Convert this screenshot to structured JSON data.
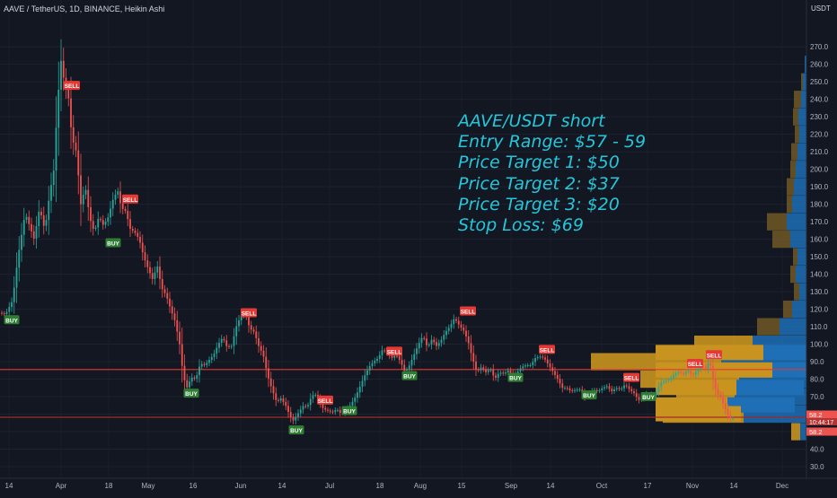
{
  "chart_data": {
    "type": "candlestick",
    "title": "AAVE / TetherUS, 1D, BINANCE, Heikin Ashi",
    "price_unit": "USDT",
    "y_ticks": [
      30,
      40,
      50,
      60,
      70,
      80,
      90,
      100,
      110,
      120,
      130,
      140,
      150,
      160,
      170,
      180,
      190,
      200,
      210,
      220,
      230,
      240,
      250,
      260,
      270
    ],
    "ylim": [
      25,
      277
    ],
    "x_labels": [
      "14",
      "Apr",
      "18",
      "May",
      "16",
      "Jun",
      "14",
      "Jul",
      "18",
      "Aug",
      "15",
      "Sep",
      "14",
      "Oct",
      "17",
      "Nov",
      "14",
      "Dec"
    ],
    "price_path": [
      [
        0,
        118
      ],
      [
        6,
        117
      ],
      [
        14,
        125
      ],
      [
        20,
        150
      ],
      [
        28,
        175
      ],
      [
        38,
        160
      ],
      [
        44,
        178
      ],
      [
        50,
        165
      ],
      [
        55,
        185
      ],
      [
        60,
        200
      ],
      [
        64,
        238
      ],
      [
        68,
        262
      ],
      [
        72,
        248
      ],
      [
        76,
        242
      ],
      [
        80,
        218
      ],
      [
        85,
        210
      ],
      [
        90,
        180
      ],
      [
        95,
        190
      ],
      [
        100,
        172
      ],
      [
        105,
        164
      ],
      [
        110,
        173
      ],
      [
        115,
        168
      ],
      [
        120,
        172
      ],
      [
        126,
        183
      ],
      [
        131,
        188
      ],
      [
        135,
        178
      ],
      [
        140,
        176
      ],
      [
        145,
        166
      ],
      [
        150,
        164
      ],
      [
        155,
        160
      ],
      [
        160,
        150
      ],
      [
        165,
        143
      ],
      [
        170,
        137
      ],
      [
        175,
        145
      ],
      [
        180,
        132
      ],
      [
        185,
        128
      ],
      [
        190,
        120
      ],
      [
        195,
        113
      ],
      [
        200,
        100
      ],
      [
        204,
        82
      ],
      [
        208,
        75
      ],
      [
        213,
        81
      ],
      [
        218,
        80
      ],
      [
        223,
        89
      ],
      [
        228,
        88
      ],
      [
        233,
        91
      ],
      [
        238,
        94
      ],
      [
        243,
        100
      ],
      [
        248,
        104
      ],
      [
        253,
        98
      ],
      [
        258,
        99
      ],
      [
        263,
        110
      ],
      [
        268,
        116
      ],
      [
        273,
        118
      ],
      [
        278,
        109
      ],
      [
        283,
        107
      ],
      [
        288,
        99
      ],
      [
        293,
        94
      ],
      [
        298,
        82
      ],
      [
        303,
        74
      ],
      [
        308,
        67
      ],
      [
        313,
        69
      ],
      [
        318,
        65
      ],
      [
        322,
        60
      ],
      [
        326,
        56
      ],
      [
        330,
        59
      ],
      [
        334,
        62
      ],
      [
        338,
        65
      ],
      [
        342,
        64
      ],
      [
        346,
        69
      ],
      [
        350,
        72
      ],
      [
        355,
        68
      ],
      [
        360,
        63
      ],
      [
        365,
        62
      ],
      [
        370,
        61
      ],
      [
        375,
        63
      ],
      [
        380,
        60
      ],
      [
        385,
        62
      ],
      [
        390,
        65
      ],
      [
        396,
        70
      ],
      [
        401,
        76
      ],
      [
        406,
        82
      ],
      [
        411,
        87
      ],
      [
        416,
        90
      ],
      [
        421,
        92
      ],
      [
        426,
        97
      ],
      [
        431,
        95
      ],
      [
        436,
        92
      ],
      [
        441,
        94
      ],
      [
        446,
        90
      ],
      [
        451,
        84
      ],
      [
        456,
        88
      ],
      [
        461,
        94
      ],
      [
        466,
        100
      ],
      [
        471,
        105
      ],
      [
        476,
        98
      ],
      [
        481,
        103
      ],
      [
        486,
        99
      ],
      [
        491,
        102
      ],
      [
        496,
        107
      ],
      [
        501,
        110
      ],
      [
        506,
        115
      ],
      [
        511,
        111
      ],
      [
        516,
        108
      ],
      [
        521,
        102
      ],
      [
        526,
        92
      ],
      [
        531,
        84
      ],
      [
        536,
        87
      ],
      [
        541,
        84
      ],
      [
        546,
        86
      ],
      [
        551,
        80
      ],
      [
        556,
        84
      ],
      [
        561,
        83
      ],
      [
        566,
        85
      ],
      [
        571,
        82
      ],
      [
        576,
        84
      ],
      [
        581,
        87
      ],
      [
        586,
        88
      ],
      [
        591,
        88
      ],
      [
        596,
        92
      ],
      [
        601,
        93
      ],
      [
        606,
        92
      ],
      [
        611,
        88
      ],
      [
        616,
        84
      ],
      [
        621,
        80
      ],
      [
        626,
        75
      ],
      [
        631,
        75
      ],
      [
        636,
        73
      ],
      [
        641,
        74
      ],
      [
        646,
        74
      ],
      [
        651,
        70
      ],
      [
        656,
        71
      ],
      [
        661,
        74
      ],
      [
        666,
        73
      ],
      [
        671,
        75
      ],
      [
        676,
        76
      ],
      [
        681,
        73
      ],
      [
        686,
        75
      ],
      [
        691,
        74
      ],
      [
        696,
        77
      ],
      [
        701,
        74
      ],
      [
        706,
        72
      ],
      [
        711,
        68
      ],
      [
        716,
        69
      ],
      [
        721,
        72
      ],
      [
        726,
        70
      ],
      [
        731,
        73
      ],
      [
        736,
        78
      ],
      [
        741,
        79
      ],
      [
        746,
        80
      ],
      [
        751,
        83
      ],
      [
        756,
        84
      ],
      [
        761,
        83
      ],
      [
        766,
        85
      ],
      [
        771,
        82
      ],
      [
        776,
        85
      ],
      [
        781,
        88
      ],
      [
        786,
        86
      ],
      [
        790,
        91
      ],
      [
        794,
        80
      ],
      [
        798,
        72
      ],
      [
        802,
        70
      ],
      [
        806,
        65
      ],
      [
        810,
        60
      ],
      [
        814,
        57
      ],
      [
        818,
        58.2
      ]
    ],
    "signals": [
      {
        "label": "BUY",
        "date_x": 13,
        "price": 114
      },
      {
        "label": "SELL",
        "date_x": 80,
        "price": 248
      },
      {
        "label": "SELL",
        "date_x": 145,
        "price": 183
      },
      {
        "label": "BUY",
        "date_x": 126,
        "price": 158
      },
      {
        "label": "BUY",
        "date_x": 213,
        "price": 72
      },
      {
        "label": "SELL",
        "date_x": 277,
        "price": 118
      },
      {
        "label": "BUY",
        "date_x": 330,
        "price": 51
      },
      {
        "label": "SELL",
        "date_x": 362,
        "price": 68
      },
      {
        "label": "BUY",
        "date_x": 389,
        "price": 62
      },
      {
        "label": "SELL",
        "date_x": 439,
        "price": 96
      },
      {
        "label": "BUY",
        "date_x": 456,
        "price": 82
      },
      {
        "label": "SELL",
        "date_x": 521,
        "price": 119
      },
      {
        "label": "BUY",
        "date_x": 574,
        "price": 81
      },
      {
        "label": "SELL",
        "date_x": 609,
        "price": 97
      },
      {
        "label": "BUY",
        "date_x": 656,
        "price": 71
      },
      {
        "label": "SELL",
        "date_x": 703,
        "price": 81
      },
      {
        "label": "BUY",
        "date_x": 722,
        "price": 70
      },
      {
        "label": "SELL",
        "date_x": 774,
        "price": 89
      },
      {
        "label": "SELL",
        "date_x": 795,
        "price": 94
      }
    ],
    "horizontal_lines": [
      {
        "price": 85.5,
        "color": "#e53935"
      },
      {
        "price": 58.2,
        "color": "#a12b2b"
      }
    ],
    "volume_profile_right": [
      {
        "price": 260,
        "blue": 2,
        "orange": 0
      },
      {
        "price": 250,
        "blue": 4,
        "orange": 2
      },
      {
        "price": 240,
        "blue": 6,
        "orange": 8
      },
      {
        "price": 230,
        "blue": 9,
        "orange": 6
      },
      {
        "price": 220,
        "blue": 8,
        "orange": 5
      },
      {
        "price": 210,
        "blue": 10,
        "orange": 7
      },
      {
        "price": 200,
        "blue": 12,
        "orange": 6
      },
      {
        "price": 190,
        "blue": 14,
        "orange": 8
      },
      {
        "price": 180,
        "blue": 16,
        "orange": 6
      },
      {
        "price": 170,
        "blue": 22,
        "orange": 22
      },
      {
        "price": 160,
        "blue": 18,
        "orange": 20
      },
      {
        "price": 150,
        "blue": 10,
        "orange": 5
      },
      {
        "price": 140,
        "blue": 12,
        "orange": 6
      },
      {
        "price": 130,
        "blue": 8,
        "orange": 6
      },
      {
        "price": 120,
        "blue": 16,
        "orange": 10
      },
      {
        "price": 110,
        "blue": 30,
        "orange": 25
      },
      {
        "price": 100,
        "blue": 60,
        "orange": 65
      },
      {
        "price": 90,
        "blue": 95,
        "orange": 145
      },
      {
        "price": 80,
        "blue": 75,
        "orange": 110
      },
      {
        "price": 70,
        "blue": 80,
        "orange": 65
      },
      {
        "price": 60,
        "blue": 70,
        "orange": 90
      },
      {
        "price": 50,
        "blue": 7,
        "orange": 10
      }
    ],
    "volume_profile_session": [
      {
        "price": 95,
        "blue": 110,
        "orange": 120
      },
      {
        "price": 85,
        "blue": 110,
        "orange": 130
      },
      {
        "price": 75,
        "blue": 75,
        "orange": 90
      },
      {
        "price": 65,
        "blue": 75,
        "orange": 80
      },
      {
        "price": 60,
        "blue": 0,
        "orange": 95
      }
    ],
    "price_tags": [
      "58.2",
      "10:44:17",
      "58.2"
    ],
    "colors": {
      "background": "#131722",
      "up": "#26a69a",
      "down": "#ef5350",
      "buy_label": "#2e7d32",
      "sell_label": "#e53935",
      "note_text": "#26c6da",
      "vp_blue": "#1e6fb5",
      "vp_orange": "#c9931f"
    }
  },
  "trade_note": {
    "line1": "AAVE/USDT short",
    "line2": "Entry Range: $57 - 59",
    "line3": "Price Target 1: $50",
    "line4": "Price Target 2: $37",
    "line5": "Price Target 3: $20",
    "line6": "Stop Loss: $69"
  }
}
